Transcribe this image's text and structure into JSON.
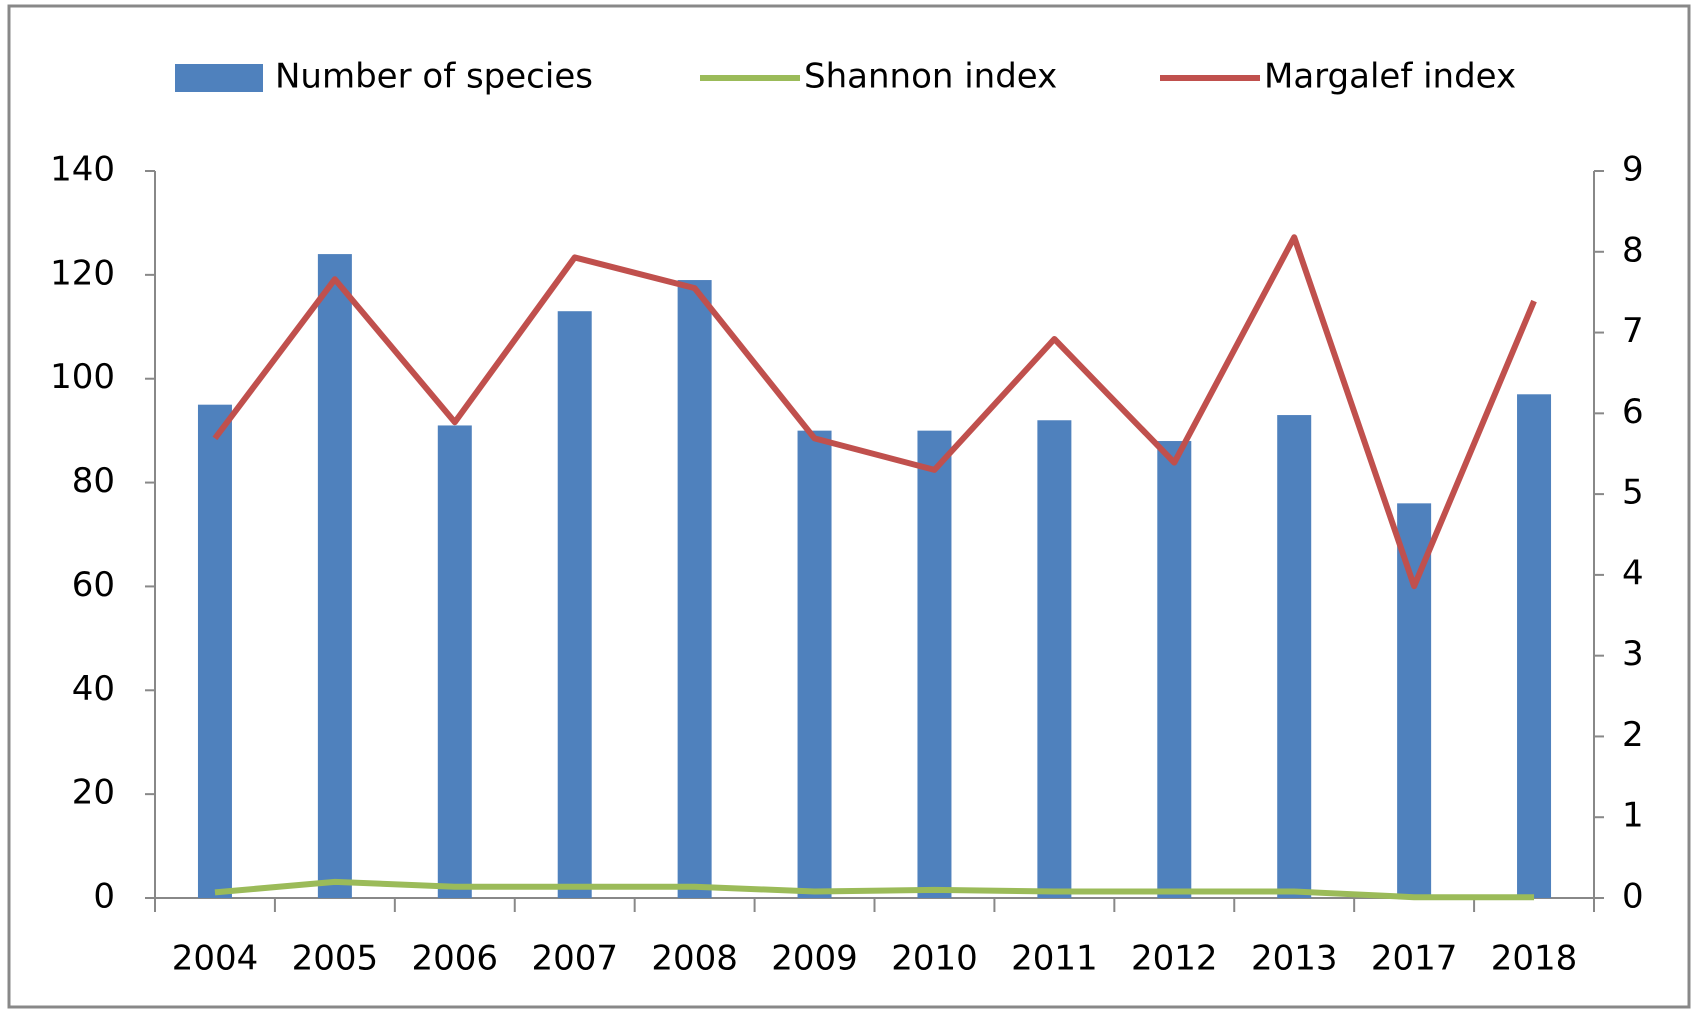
{
  "chart_data": {
    "type": "bar",
    "categories": [
      "2004",
      "2005",
      "2006",
      "2007",
      "2008",
      "2009",
      "2010",
      "2011",
      "2012",
      "2013",
      "2017",
      "2018"
    ],
    "series": [
      {
        "name": "Number of species",
        "type": "bar",
        "color": "#4f81bd",
        "values": [
          95,
          124,
          91,
          113,
          119,
          90,
          90,
          92,
          88,
          93,
          76,
          97
        ]
      },
      {
        "name": "Shannon index",
        "type": "line",
        "axis": "y2",
        "color": "#9bbb59",
        "values": [
          0.07,
          0.2,
          0.14,
          0.14,
          0.14,
          0.08,
          0.1,
          0.08,
          0.08,
          0.08,
          0.01,
          0.01
        ]
      },
      {
        "name": "Margalef index",
        "type": "line",
        "axis": "y2",
        "color": "#c0504d",
        "values": [
          5.69,
          7.66,
          5.89,
          7.93,
          7.55,
          5.69,
          5.3,
          6.92,
          5.39,
          8.18,
          3.86,
          7.39
        ]
      }
    ],
    "ylim": [
      0,
      140
    ],
    "yticks": [
      0,
      20,
      40,
      60,
      80,
      100,
      120,
      140
    ],
    "y2lim": [
      0,
      9
    ],
    "y2ticks": [
      0,
      1,
      2,
      3,
      4,
      5,
      6,
      7,
      8,
      9
    ],
    "legend": "top"
  }
}
